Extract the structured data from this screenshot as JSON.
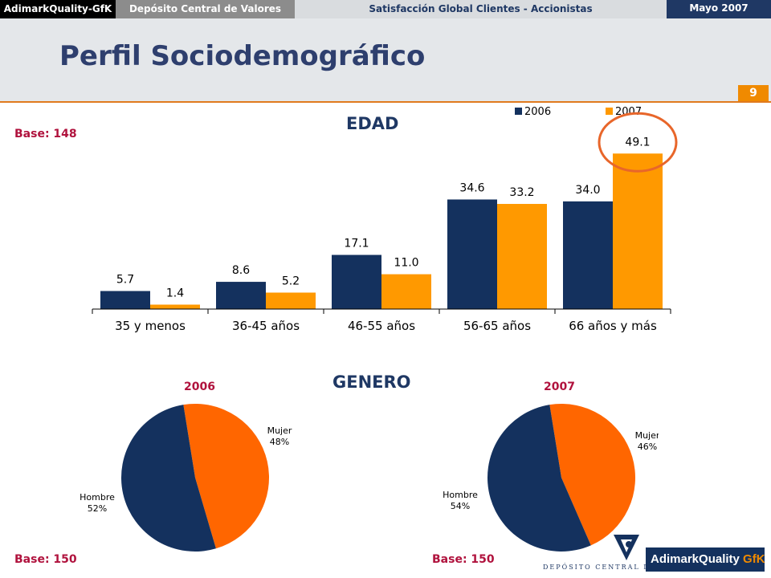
{
  "topbar": {
    "company": "AdimarkQuality-GfK",
    "client": "Depósito Central de Valores",
    "study": "Satisfacción Global Clientes - Accionistas",
    "date": "Mayo 2007"
  },
  "page": {
    "title": "Perfil Sociodemográfico",
    "number": "9"
  },
  "edad": {
    "title": "EDAD",
    "base": "Base: 148"
  },
  "genero": {
    "title": "GENERO",
    "base_2006": "Base: 150",
    "base_2007": "Base: 150"
  },
  "colors": {
    "series_2006": "#14315e",
    "series_2007": "#ff9900",
    "pie_hombre": "#14315e",
    "pie_mujer": "#ff6600",
    "highlight_circle": "#e8662a"
  },
  "logos": {
    "dcv": "DEPÓSITO CENTRAL DE VALORES",
    "adimark": "AdimarkQuality",
    "gfk": "GfK"
  },
  "chart_data": [
    {
      "type": "bar",
      "title": "EDAD",
      "categories": [
        "35 y menos",
        "36-45 años",
        "46-55 años",
        "56-65 años",
        "66 años y más"
      ],
      "series": [
        {
          "name": "2006",
          "values": [
            5.7,
            8.6,
            17.1,
            34.6,
            34.0
          ],
          "labels": [
            "5.7",
            "8.6",
            "17.1",
            "34.6",
            "34.0"
          ]
        },
        {
          "name": "2007",
          "values": [
            1.4,
            5.2,
            11.0,
            33.2,
            49.1
          ],
          "labels": [
            "1.4",
            "5.2",
            "11.0",
            "33.2",
            "49.1"
          ]
        }
      ],
      "ylim": [
        0,
        55
      ],
      "legend": "top-right",
      "grid": false
    },
    {
      "type": "pie",
      "title": "2006",
      "slices": [
        {
          "name": "Hombre",
          "value": 52,
          "label": "52%"
        },
        {
          "name": "Mujer",
          "value": 48,
          "label": "48%"
        }
      ]
    },
    {
      "type": "pie",
      "title": "2007",
      "slices": [
        {
          "name": "Hombre",
          "value": 54,
          "label": "54%"
        },
        {
          "name": "Mujer",
          "value": 46,
          "label": "46%"
        }
      ]
    }
  ]
}
